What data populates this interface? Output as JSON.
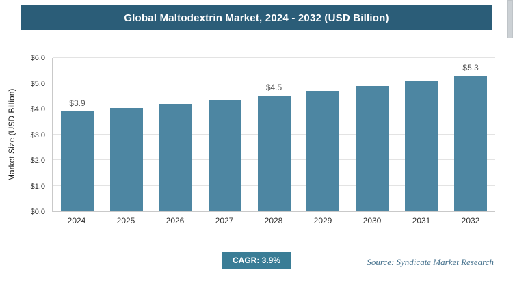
{
  "title": "Global Maltodextrin Market, 2024 - 2032 (USD Billion)",
  "chart_data": {
    "type": "bar",
    "title": "Global Maltodextrin Market, 2024 - 2032 (USD Billion)",
    "categories": [
      "2024",
      "2025",
      "2026",
      "2027",
      "2028",
      "2029",
      "2030",
      "2031",
      "2032"
    ],
    "values": [
      3.9,
      4.05,
      4.21,
      4.37,
      4.54,
      4.72,
      4.91,
      5.1,
      5.3
    ],
    "data_labels": [
      "$3.9",
      "",
      "",
      "",
      "$4.5",
      "",
      "",
      "",
      "$5.3"
    ],
    "xlabel": "",
    "ylabel": "Market Size (USD Billion)",
    "ylim": [
      0,
      6
    ],
    "yticks": [
      "$0.0",
      "$1.0",
      "$2.0",
      "$3.0",
      "$4.0",
      "$5.0",
      "$6.0"
    ],
    "grid": true,
    "legend": false
  },
  "footer": {
    "cagr_label": "CAGR: 3.9%",
    "source": "Source: Syndicate Market Research"
  },
  "colors": {
    "banner_bg": "#2b5d78",
    "bar": "#4d86a2",
    "badge_bg": "#3a7d96",
    "source_text": "#44708c"
  }
}
